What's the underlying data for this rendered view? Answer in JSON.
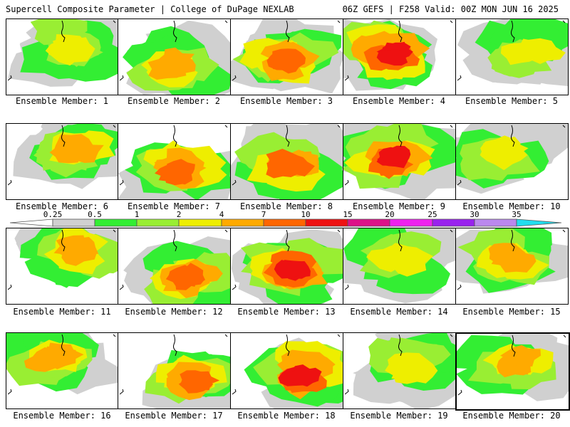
{
  "header": {
    "title_left": "Supercell Composite Parameter | College of DuPage NEXLAB",
    "title_right": "06Z GEFS | F258 Valid: 00Z MON JUN 16 2025"
  },
  "panel_label_prefix": "Ensemble Member:",
  "panels": [
    {
      "member": "1"
    },
    {
      "member": "2"
    },
    {
      "member": "3"
    },
    {
      "member": "4"
    },
    {
      "member": "5"
    },
    {
      "member": "6"
    },
    {
      "member": "7"
    },
    {
      "member": "8"
    },
    {
      "member": "9"
    },
    {
      "member": "10"
    },
    {
      "member": "11"
    },
    {
      "member": "12"
    },
    {
      "member": "13"
    },
    {
      "member": "14"
    },
    {
      "member": "15"
    },
    {
      "member": "16"
    },
    {
      "member": "17"
    },
    {
      "member": "18"
    },
    {
      "member": "19"
    },
    {
      "member": "20"
    }
  ],
  "colorbar": {
    "levels": [
      "0.25",
      "0.5",
      "1",
      "2",
      "4",
      "7",
      "10",
      "15",
      "20",
      "25",
      "30",
      "35"
    ],
    "colors": [
      "#d0d0d0",
      "#33ee33",
      "#99ee33",
      "#eeee00",
      "#ffaa00",
      "#ff6600",
      "#ee1111",
      "#dd1188",
      "#ee22ee",
      "#9922ee",
      "#bb88ee",
      "#22ddee"
    ]
  }
}
